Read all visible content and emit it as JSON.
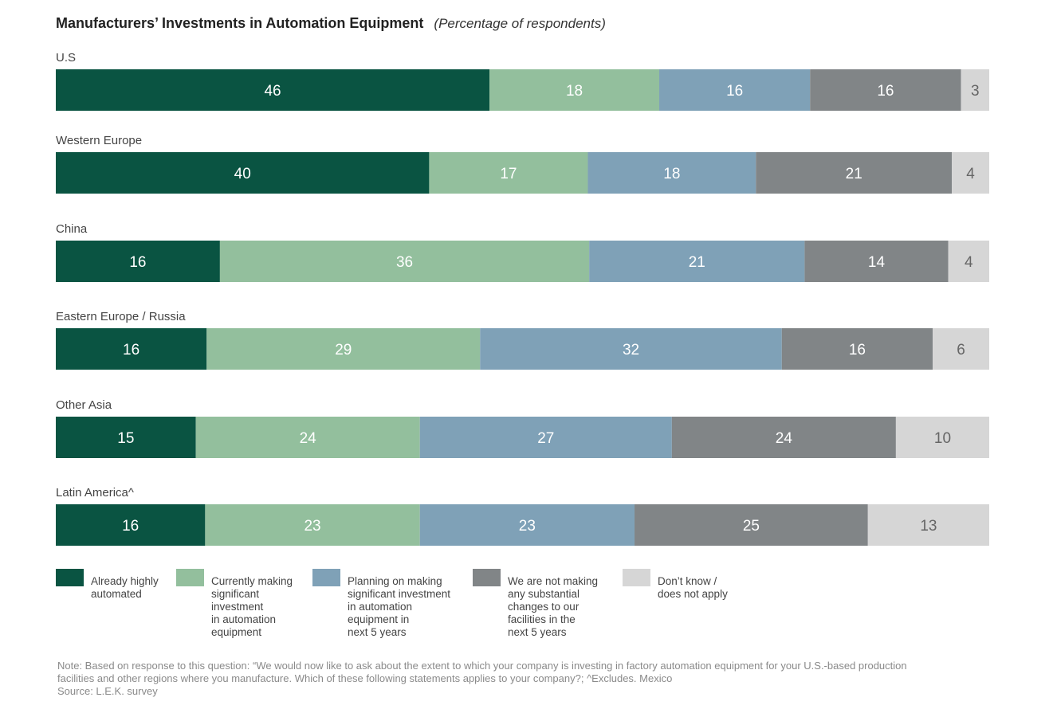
{
  "chart_data": {
    "type": "bar",
    "orientation": "horizontal",
    "stacked": true,
    "title": "Manufacturers’ Investments in Automation Equipment",
    "subtitle": "(Percentage of respondents)",
    "categories": [
      "U.S",
      "Western Europe",
      "China",
      "Eastern Europe / Russia",
      "Other Asia",
      "Latin America^"
    ],
    "series": [
      {
        "name": "Already highly automated",
        "color": "#0a5442",
        "values": [
          46,
          40,
          16,
          16,
          15,
          16
        ]
      },
      {
        "name": "Currently making significant investment in automation equipment",
        "color": "#93bf9d",
        "values": [
          18,
          17,
          36,
          29,
          24,
          23
        ]
      },
      {
        "name": "Planning on making significant investment in automation equipment in next 5 years",
        "color": "#7fa1b7",
        "values": [
          16,
          18,
          21,
          32,
          27,
          23
        ]
      },
      {
        "name": "We are not making any  substantial changes to our facilities in the next 5 years",
        "color": "#818587",
        "values": [
          16,
          21,
          14,
          16,
          24,
          25
        ]
      },
      {
        "name": "Don’t know / does not apply",
        "color": "#d6d6d6",
        "values": [
          3,
          4,
          4,
          6,
          10,
          13
        ]
      }
    ],
    "grid": false,
    "legend_position": "bottom"
  },
  "legend": [
    {
      "label": "Already highly\nautomated",
      "color": "#0a5442"
    },
    {
      "label": "Currently making\nsignificant\ninvestment\nin automation\nequipment",
      "color": "#93bf9d"
    },
    {
      "label": "Planning on making\nsignificant investment\nin automation\nequipment in\nnext 5 years",
      "color": "#7fa1b7"
    },
    {
      "label": "We are not making\nany  substantial\nchanges to our\nfacilities in the\nnext 5 years",
      "color": "#818587"
    },
    {
      "label": "Don’t know /\ndoes not apply",
      "color": "#d6d6d6"
    }
  ],
  "note": {
    "line1": "Note: Based on response to this question: “We would now like to ask about the extent to which your company is investing in factory automation equipment for your U.S.-based production",
    "line2": "facilities and other regions where you manufacture. Which of these following statements applies to your company?; ^Excludes. Mexico",
    "source": "Source: L.E.K. survey"
  }
}
